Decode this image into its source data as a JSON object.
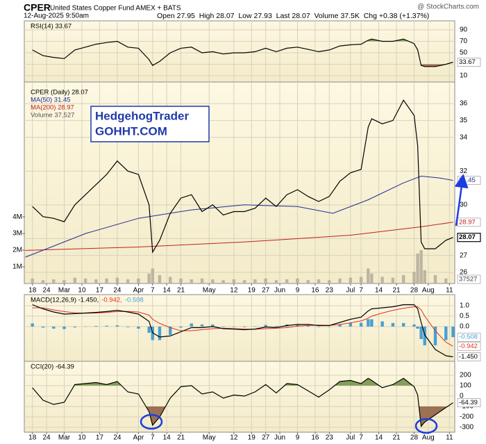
{
  "header": {
    "symbol": "CPER",
    "description": "United States Copper Fund AMEX + BATS",
    "source": "@ StockCharts.com",
    "timestamp": "12-Aug-2025 9:50am",
    "quote": "Open 27.95  High 28.07  Low 27.93  Last 28.07  Volume 37.5K  Chg +0.38 (+1.37%)"
  },
  "watermark": {
    "line1": "HedgehogTrader",
    "line2": "GOHHT.COM"
  },
  "chart_data": [
    {
      "type": "line",
      "x": [
        0,
        3,
        6,
        9,
        12,
        15,
        18,
        21,
        24,
        27,
        30,
        33,
        34,
        36,
        39,
        42,
        45,
        48,
        51,
        54,
        57,
        60,
        63,
        66,
        69,
        72,
        75,
        78,
        81,
        84,
        87,
        90,
        93,
        95,
        96,
        99,
        102,
        105,
        108,
        109,
        110,
        111,
        114,
        117,
        119
      ],
      "xlim": [
        -2.3,
        119.5
      ],
      "ylim": [
        -0.9,
        105.8
      ],
      "yticks": [
        10,
        30,
        50,
        70,
        90
      ],
      "grid": true,
      "fills": [
        {
          "level": 70,
          "side": "above",
          "color": "#6f8f43"
        },
        {
          "level": 30,
          "side": "below",
          "color": "#8d5b3e"
        }
      ],
      "series": [
        {
          "name": "RSI(14) 33.67",
          "color": "#000000",
          "last_label": "33.67",
          "values": [
            55,
            45,
            42,
            40,
            55,
            60,
            65,
            68,
            70,
            60,
            58,
            38,
            28,
            35,
            50,
            58,
            60,
            50,
            52,
            48,
            50,
            50,
            52,
            58,
            52,
            58,
            60,
            56,
            52,
            55,
            62,
            64,
            65,
            72,
            74,
            70,
            70,
            74,
            66,
            55,
            28,
            26,
            26,
            30,
            33.67
          ]
        }
      ]
    },
    {
      "type": "line",
      "x": [
        0,
        3,
        6,
        9,
        12,
        15,
        18,
        21,
        24,
        27,
        30,
        33,
        34,
        36,
        39,
        42,
        45,
        48,
        51,
        54,
        57,
        60,
        63,
        66,
        69,
        72,
        75,
        78,
        81,
        84,
        87,
        90,
        93,
        95,
        96,
        99,
        102,
        105,
        108,
        109,
        110,
        111,
        114,
        117,
        119
      ],
      "xlim": [
        -2.3,
        119.5
      ],
      "xticks": [
        {
          "value": 0,
          "label": "18"
        },
        {
          "value": 4,
          "label": "24"
        },
        {
          "value": 9,
          "label": "Mar"
        },
        {
          "value": 14,
          "label": "10"
        },
        {
          "value": 19,
          "label": "17"
        },
        {
          "value": 24,
          "label": "24"
        },
        {
          "value": 30,
          "label": "Apr"
        },
        {
          "value": 34,
          "label": "7"
        },
        {
          "value": 38,
          "label": "14"
        },
        {
          "value": 42,
          "label": "21"
        },
        {
          "value": 50,
          "label": "May"
        },
        {
          "value": 57,
          "label": "12"
        },
        {
          "value": 62,
          "label": "19"
        },
        {
          "value": 66,
          "label": "27"
        },
        {
          "value": 70,
          "label": "Jun"
        },
        {
          "value": 75,
          "label": "9"
        },
        {
          "value": 80,
          "label": "16"
        },
        {
          "value": 84,
          "label": "23"
        },
        {
          "value": 90,
          "label": "Jul"
        },
        {
          "value": 93,
          "label": "7"
        },
        {
          "value": 98,
          "label": "14"
        },
        {
          "value": 103,
          "label": "21"
        },
        {
          "value": 108,
          "label": "28"
        },
        {
          "value": 112,
          "label": "Aug"
        },
        {
          "value": 118,
          "label": "11"
        }
      ],
      "ylim": [
        25.34,
        37.28
      ],
      "yticks": [
        26,
        27,
        28,
        30,
        32,
        34,
        35,
        36
      ],
      "y2lim": [
        0,
        12100000
      ],
      "y2ticks": [
        {
          "value": 1000000,
          "label": "1M"
        },
        {
          "value": 2000000,
          "label": "2M"
        },
        {
          "value": 3000000,
          "label": "3M"
        },
        {
          "value": 4000000,
          "label": "4M"
        }
      ],
      "grid": true,
      "series": [
        {
          "name": "Volume 37,527",
          "type": "bar",
          "axis": "y2",
          "color": "#bdb5a2",
          "last_label": "37527",
          "values": [
            300000,
            200000,
            250000,
            200000,
            350000,
            300000,
            250000,
            300000,
            350000,
            250000,
            300000,
            600000,
            900000,
            500000,
            400000,
            300000,
            250000,
            300000,
            250000,
            200000,
            250000,
            200000,
            250000,
            300000,
            200000,
            250000,
            300000,
            200000,
            250000,
            200000,
            300000,
            350000,
            400000,
            900000,
            600000,
            400000,
            350000,
            500000,
            700000,
            1800000,
            2000000,
            800000,
            500000,
            300000,
            37527
          ]
        },
        {
          "name": "MA(200) 28.97",
          "color": "#c0201e",
          "last_label": "28.97",
          "x": [
            -2,
            30,
            60,
            90,
            110,
            119
          ],
          "values": [
            27.3,
            27.5,
            27.8,
            28.2,
            28.7,
            28.97
          ]
        },
        {
          "name": "MA(50) 31.45",
          "color": "#1f2b96",
          "last_label": "31.45",
          "x": [
            -2,
            15,
            30,
            45,
            60,
            75,
            85,
            95,
            105,
            110,
            115,
            119
          ],
          "values": [
            26.9,
            28.3,
            29.2,
            29.7,
            30.0,
            29.9,
            29.5,
            30.3,
            31.3,
            31.7,
            31.6,
            31.45
          ]
        },
        {
          "name": "CPER (Daily) 28.07",
          "color": "#000000",
          "last_label": "28.07",
          "values": [
            29.9,
            29.3,
            29.2,
            29.0,
            30.0,
            30.6,
            31.2,
            31.8,
            32.6,
            32.0,
            31.8,
            30.0,
            27.2,
            27.9,
            29.5,
            30.4,
            30.6,
            29.6,
            30.0,
            29.4,
            29.6,
            29.6,
            29.8,
            30.4,
            29.9,
            30.6,
            30.9,
            30.5,
            30.2,
            30.5,
            31.4,
            31.9,
            32.1,
            34.6,
            35.1,
            34.8,
            35.0,
            36.2,
            35.3,
            33.5,
            27.8,
            27.4,
            27.4,
            27.9,
            28.07
          ]
        }
      ]
    },
    {
      "type": "line",
      "x": [
        0,
        3,
        6,
        9,
        12,
        15,
        18,
        21,
        24,
        27,
        30,
        33,
        34,
        36,
        39,
        42,
        45,
        48,
        51,
        54,
        57,
        60,
        63,
        66,
        69,
        72,
        75,
        78,
        81,
        84,
        87,
        90,
        93,
        95,
        96,
        99,
        102,
        105,
        108,
        109,
        110,
        111,
        114,
        117,
        119
      ],
      "xlim": [
        -2.3,
        119.5
      ],
      "ylim": [
        -1.667,
        1.533
      ],
      "yticks": [
        {
          "value": 0,
          "label": "0.0"
        },
        {
          "value": 0.5,
          "label": "0.5"
        },
        {
          "value": 1,
          "label": "1.0"
        }
      ],
      "grid": true,
      "series": [
        {
          "name": "-0.508",
          "type": "bar",
          "color": "#4aa0d2",
          "last_label": "-0.508",
          "values": [
            0.15,
            -0.05,
            -0.1,
            -0.12,
            -0.04,
            0.01,
            0.03,
            0.04,
            0.06,
            -0.03,
            -0.1,
            -0.3,
            -0.65,
            -0.65,
            -0.4,
            -0.05,
            0.15,
            0.1,
            0.1,
            -0.02,
            -0.02,
            -0.03,
            0.01,
            0.08,
            0.03,
            0.1,
            0.08,
            0.04,
            -0.02,
            -0.01,
            0.1,
            0.17,
            0.18,
            0.35,
            0.35,
            0.25,
            0.17,
            0.17,
            0.1,
            -0.1,
            -0.6,
            -0.9,
            -0.9,
            -0.65,
            -0.508
          ]
        },
        {
          "name": "-0.942,",
          "color": "#e0301e",
          "last_label": "-0.942",
          "values": [
            0.9,
            0.9,
            0.8,
            0.72,
            0.66,
            0.64,
            0.65,
            0.68,
            0.72,
            0.73,
            0.7,
            0.55,
            0.35,
            0.15,
            -0.05,
            -0.2,
            -0.2,
            -0.15,
            -0.1,
            -0.08,
            -0.1,
            -0.12,
            -0.13,
            -0.1,
            -0.08,
            -0.05,
            0.02,
            0.06,
            0.07,
            0.06,
            0.1,
            0.18,
            0.27,
            0.4,
            0.5,
            0.65,
            0.78,
            0.88,
            0.95,
            0.95,
            0.8,
            0.5,
            -0.2,
            -0.75,
            -0.942
          ]
        },
        {
          "name": "MACD(12,26,9) -1.450,",
          "color": "#000000",
          "last_label": "-1.450",
          "values": [
            1.05,
            0.85,
            0.7,
            0.6,
            0.62,
            0.65,
            0.68,
            0.72,
            0.78,
            0.7,
            0.6,
            0.25,
            -0.3,
            -0.5,
            -0.45,
            -0.25,
            -0.05,
            -0.05,
            0.0,
            -0.1,
            -0.12,
            -0.15,
            -0.12,
            -0.02,
            -0.05,
            0.05,
            0.1,
            0.1,
            0.05,
            0.05,
            0.2,
            0.35,
            0.45,
            0.75,
            0.85,
            0.9,
            0.95,
            1.05,
            1.05,
            0.85,
            0.2,
            -0.4,
            -1.1,
            -1.4,
            -1.45
          ]
        }
      ]
    },
    {
      "type": "line",
      "x": [
        0,
        3,
        6,
        9,
        12,
        15,
        18,
        21,
        24,
        27,
        30,
        33,
        34,
        36,
        39,
        42,
        45,
        48,
        51,
        54,
        57,
        60,
        63,
        66,
        69,
        72,
        75,
        78,
        81,
        84,
        87,
        90,
        93,
        95,
        96,
        99,
        102,
        105,
        108,
        109,
        110,
        111,
        114,
        117,
        119
      ],
      "xlim": [
        -2.3,
        119.5
      ],
      "xticks": [
        {
          "value": 0,
          "label": "18"
        },
        {
          "value": 4,
          "label": "24"
        },
        {
          "value": 9,
          "label": "Mar"
        },
        {
          "value": 14,
          "label": "10"
        },
        {
          "value": 19,
          "label": "17"
        },
        {
          "value": 24,
          "label": "24"
        },
        {
          "value": 30,
          "label": "Apr"
        },
        {
          "value": 34,
          "label": "7"
        },
        {
          "value": 38,
          "label": "14"
        },
        {
          "value": 42,
          "label": "21"
        },
        {
          "value": 50,
          "label": "May"
        },
        {
          "value": 57,
          "label": "12"
        },
        {
          "value": 62,
          "label": "19"
        },
        {
          "value": 66,
          "label": "27"
        },
        {
          "value": 70,
          "label": "Jun"
        },
        {
          "value": 75,
          "label": "9"
        },
        {
          "value": 80,
          "label": "16"
        },
        {
          "value": 84,
          "label": "23"
        },
        {
          "value": 90,
          "label": "Jul"
        },
        {
          "value": 93,
          "label": "7"
        },
        {
          "value": 98,
          "label": "14"
        },
        {
          "value": 103,
          "label": "21"
        },
        {
          "value": 108,
          "label": "28"
        },
        {
          "value": 112,
          "label": "Aug"
        },
        {
          "value": 118,
          "label": "11"
        }
      ],
      "ylim": [
        -347,
        333
      ],
      "yticks": [
        -300,
        -200,
        -100,
        0,
        100,
        200
      ],
      "grid": true,
      "fills": [
        {
          "level": 100,
          "side": "above",
          "color": "#6f8f43"
        },
        {
          "level": -100,
          "side": "below",
          "color": "#8d5b3e"
        }
      ],
      "series": [
        {
          "name": "CCI(20) -64.39",
          "color": "#000000",
          "last_label": "-64.39",
          "values": [
            80,
            -40,
            -80,
            -60,
            110,
            120,
            130,
            110,
            140,
            40,
            20,
            -150,
            -280,
            -200,
            -20,
            90,
            100,
            20,
            40,
            -20,
            10,
            0,
            40,
            110,
            30,
            120,
            110,
            50,
            -10,
            60,
            140,
            150,
            120,
            170,
            150,
            80,
            110,
            170,
            90,
            10,
            -290,
            -250,
            -180,
            -110,
            -64.39
          ]
        }
      ]
    }
  ]
}
